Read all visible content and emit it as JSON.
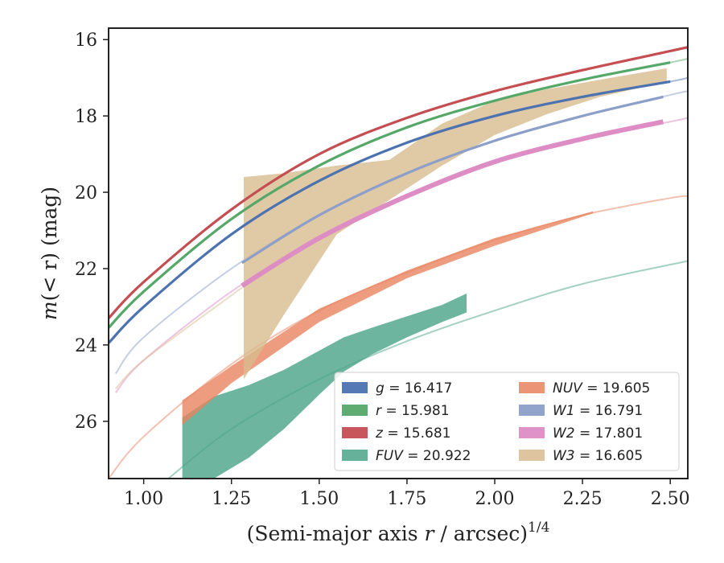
{
  "chart_data": {
    "type": "line",
    "xlabel": "(Semi-major axis r / arcsec)^{1/4}",
    "xlabel_parts": {
      "pre": "(Semi-major axis ",
      "var": "r",
      "post": " / arcsec)",
      "sup": "1/4"
    },
    "ylabel": "m(< r) (mag)",
    "ylabel_parts": {
      "pre": "m",
      "mid": "(< r)",
      "post": " (mag)"
    },
    "xlim": [
      0.9,
      2.55
    ],
    "ylim": [
      27.5,
      15.7
    ],
    "y_inverted": true,
    "grid": false,
    "legend_position": "lower-right",
    "xticks": [
      1.0,
      1.25,
      1.5,
      1.75,
      2.0,
      2.25,
      2.5
    ],
    "xtick_labels": [
      "1.00",
      "1.25",
      "1.50",
      "1.75",
      "2.00",
      "2.25",
      "2.50"
    ],
    "yticks": [
      16,
      18,
      20,
      22,
      24,
      26
    ],
    "ytick_labels": [
      "16",
      "18",
      "20",
      "22",
      "24",
      "26"
    ],
    "series": [
      {
        "name": "g = 16.417",
        "band": "g",
        "italic": false,
        "mag": "16.417",
        "color": "#4c72b0",
        "style": "curve",
        "extended": {
          "x": [
            0.9,
            1.0,
            1.25,
            1.5,
            1.75,
            2.0,
            2.25,
            2.5,
            2.55
          ],
          "y": [
            23.95,
            23.0,
            21.1,
            19.7,
            18.7,
            18.0,
            17.5,
            17.1,
            17.0
          ]
        },
        "measured": {
          "x": [
            0.9,
            1.0,
            1.25,
            1.5,
            1.75,
            2.0,
            2.25,
            2.5
          ],
          "y": [
            23.95,
            23.0,
            21.1,
            19.7,
            18.7,
            18.0,
            17.5,
            17.1
          ]
        }
      },
      {
        "name": "r = 15.981",
        "band": "r",
        "italic": false,
        "mag": "15.981",
        "color": "#55a868",
        "style": "curve",
        "extended": {
          "x": [
            0.9,
            1.0,
            1.25,
            1.5,
            1.75,
            2.0,
            2.25,
            2.5,
            2.55
          ],
          "y": [
            23.55,
            22.6,
            20.7,
            19.3,
            18.3,
            17.6,
            17.05,
            16.6,
            16.5
          ]
        },
        "measured": {
          "x": [
            0.9,
            1.0,
            1.25,
            1.5,
            1.75,
            2.0,
            2.25,
            2.5
          ],
          "y": [
            23.55,
            22.6,
            20.7,
            19.3,
            18.3,
            17.6,
            17.05,
            16.6
          ]
        }
      },
      {
        "name": "z = 15.681",
        "band": "z",
        "italic": false,
        "mag": "15.681",
        "color": "#c44e52",
        "style": "curve",
        "extended": {
          "x": [
            0.9,
            1.0,
            1.25,
            1.5,
            1.75,
            2.0,
            2.25,
            2.5,
            2.55
          ],
          "y": [
            23.3,
            22.35,
            20.45,
            19.0,
            18.05,
            17.35,
            16.8,
            16.3,
            16.2
          ]
        },
        "measured": {
          "x": [
            0.9,
            1.0,
            1.25,
            1.5,
            1.75,
            2.0,
            2.25,
            2.5,
            2.55
          ],
          "y": [
            23.3,
            22.35,
            20.45,
            19.0,
            18.05,
            17.35,
            16.8,
            16.3,
            16.2
          ]
        }
      },
      {
        "name": "FUV = 20.922",
        "band": "FUV",
        "italic": true,
        "mag": "20.922",
        "color": "#4aa387",
        "style": "band",
        "extended": {
          "x": [
            1.07,
            1.25,
            1.5,
            1.75,
            2.0,
            2.25,
            2.55
          ],
          "y": [
            27.5,
            26.2,
            24.9,
            23.9,
            23.1,
            22.4,
            21.8
          ]
        },
        "band_x": [
          1.11,
          1.2,
          1.3,
          1.4,
          1.5,
          1.57,
          1.65,
          1.75,
          1.85,
          1.92
        ],
        "band_upper": [
          25.9,
          25.35,
          25.05,
          24.65,
          24.15,
          23.8,
          23.55,
          23.25,
          22.95,
          22.65
        ],
        "band_lower": [
          27.5,
          27.5,
          26.95,
          26.2,
          25.3,
          24.7,
          24.25,
          23.8,
          23.4,
          23.15
        ]
      },
      {
        "name": "NUV = 19.605",
        "band": "NUV",
        "italic": true,
        "mag": "19.605",
        "color": "#e8835f",
        "style": "band",
        "extended": {
          "x": [
            0.9,
            1.0,
            1.25,
            1.5,
            1.75,
            2.0,
            2.25,
            2.5,
            2.55
          ],
          "y": [
            27.5,
            26.4,
            24.5,
            23.1,
            22.1,
            21.25,
            20.6,
            20.15,
            20.1
          ]
        },
        "band_x": [
          1.11,
          1.25,
          1.5,
          1.75,
          2.0,
          2.28
        ],
        "band_upper": [
          25.45,
          24.55,
          23.05,
          22.05,
          21.2,
          20.5
        ],
        "band_lower": [
          26.1,
          25.0,
          23.4,
          22.25,
          21.4,
          20.55
        ]
      },
      {
        "name": "W1 = 16.791",
        "band": "W1",
        "italic": true,
        "mag": "16.791",
        "color": "#8c9fc9",
        "style": "curve",
        "extended": {
          "x": [
            0.92,
            1.0,
            1.25,
            1.5,
            1.75,
            2.0,
            2.25,
            2.5,
            2.55
          ],
          "y": [
            24.75,
            23.8,
            22.0,
            20.6,
            19.5,
            18.65,
            18.0,
            17.45,
            17.35
          ]
        },
        "measured": {
          "x": [
            1.28,
            1.5,
            1.75,
            2.0,
            2.25,
            2.48
          ],
          "y": [
            21.85,
            20.6,
            19.5,
            18.65,
            18.0,
            17.5
          ]
        }
      },
      {
        "name": "W2 = 17.801",
        "band": "W2",
        "italic": true,
        "mag": "17.801",
        "color": "#dd8cc4",
        "style": "curve",
        "extended": {
          "x": [
            0.92,
            1.0,
            1.25,
            1.5,
            1.75,
            2.0,
            2.25,
            2.5,
            2.55
          ],
          "y": [
            25.25,
            24.4,
            22.6,
            21.2,
            20.1,
            19.2,
            18.6,
            18.15,
            18.05
          ]
        },
        "measured": {
          "x": [
            1.28,
            1.5,
            1.75,
            2.0,
            2.25,
            2.48
          ],
          "y": [
            22.45,
            21.2,
            20.1,
            19.2,
            18.6,
            18.15
          ]
        }
      },
      {
        "name": "W3 = 16.605",
        "band": "W3",
        "italic": true,
        "mag": "16.605",
        "color": "#d8bb8f",
        "style": "band",
        "extended": {
          "x": [
            0.92,
            1.0,
            1.25,
            1.28
          ],
          "y": [
            25.15,
            24.4,
            22.7,
            22.5
          ]
        },
        "band_x": [
          1.285,
          1.4,
          1.55,
          1.7,
          1.85,
          2.0,
          2.15,
          2.3,
          2.49
        ],
        "band_upper": [
          19.6,
          19.5,
          19.3,
          19.15,
          18.2,
          17.6,
          17.3,
          17.05,
          16.75
        ],
        "band_lower": [
          24.9,
          23.2,
          21.1,
          20.2,
          19.3,
          18.5,
          17.95,
          17.5,
          17.1
        ]
      }
    ],
    "legend_columns": [
      [
        "g",
        "r",
        "z",
        "FUV"
      ],
      [
        "NUV",
        "W1",
        "W2",
        "W3"
      ]
    ]
  }
}
